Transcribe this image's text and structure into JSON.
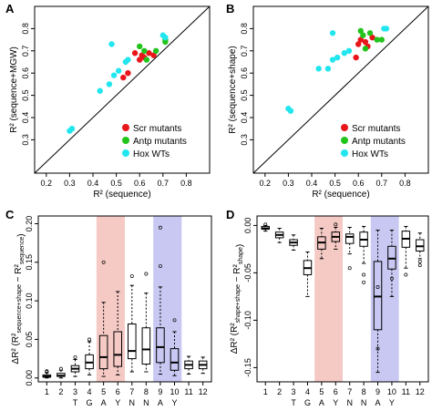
{
  "panels": {
    "A": "A",
    "B": "B",
    "C": "C",
    "D": "D"
  },
  "colors": {
    "scr": "#e8161b",
    "antp": "#22c41c",
    "hox": "#22e6ee",
    "box_red_band": "#f5c9c4",
    "box_blue_band": "#c8c8f3"
  },
  "chart_data": [
    {
      "id": "A",
      "type": "scatter",
      "xlabel": "R² (sequence)",
      "ylabel": "R² (sequence+MGW)",
      "xlim": [
        0.15,
        0.9
      ],
      "ylim": [
        0.15,
        0.9
      ],
      "xticks": [
        "0.2",
        "0.3",
        "0.4",
        "0.5",
        "0.6",
        "0.7",
        "0.8"
      ],
      "yticks": [
        "0.3",
        "0.4",
        "0.5",
        "0.6",
        "0.7",
        "0.8"
      ],
      "diagonal": true,
      "legend_position": "bottom-right",
      "series": [
        {
          "name": "Scr mutants",
          "color_key": "scr",
          "points": [
            [
              0.58,
              0.69
            ],
            [
              0.61,
              0.68
            ],
            [
              0.64,
              0.69
            ],
            [
              0.66,
              0.68
            ],
            [
              0.55,
              0.6
            ],
            [
              0.53,
              0.58
            ],
            [
              0.6,
              0.66
            ],
            [
              0.62,
              0.67
            ]
          ]
        },
        {
          "name": "Antp mutants",
          "color_key": "antp",
          "points": [
            [
              0.6,
              0.72
            ],
            [
              0.62,
              0.7
            ],
            [
              0.63,
              0.66
            ],
            [
              0.67,
              0.7
            ],
            [
              0.71,
              0.74
            ],
            [
              0.71,
              0.75
            ]
          ]
        },
        {
          "name": "Hox WTs",
          "color_key": "hox",
          "points": [
            [
              0.3,
              0.34
            ],
            [
              0.31,
              0.35
            ],
            [
              0.43,
              0.52
            ],
            [
              0.47,
              0.55
            ],
            [
              0.49,
              0.59
            ],
            [
              0.51,
              0.61
            ],
            [
              0.54,
              0.65
            ],
            [
              0.55,
              0.66
            ],
            [
              0.48,
              0.73
            ],
            [
              0.7,
              0.77
            ],
            [
              0.71,
              0.76
            ]
          ]
        }
      ]
    },
    {
      "id": "B",
      "type": "scatter",
      "xlabel": "R² (sequence)",
      "ylabel": "R² (sequence+shape)",
      "xlim": [
        0.15,
        0.9
      ],
      "ylim": [
        0.15,
        0.9
      ],
      "xticks": [
        "0.2",
        "0.3",
        "0.4",
        "0.5",
        "0.6",
        "0.7",
        "0.8"
      ],
      "yticks": [
        "0.3",
        "0.4",
        "0.5",
        "0.6",
        "0.7",
        "0.8"
      ],
      "diagonal": true,
      "legend_position": "bottom-right",
      "series": [
        {
          "name": "Scr mutants",
          "color_key": "scr",
          "points": [
            [
              0.59,
              0.67
            ],
            [
              0.61,
              0.75
            ],
            [
              0.63,
              0.74
            ],
            [
              0.66,
              0.76
            ],
            [
              0.64,
              0.72
            ],
            [
              0.6,
              0.73
            ]
          ]
        },
        {
          "name": "Antp mutants",
          "color_key": "antp",
          "points": [
            [
              0.61,
              0.79
            ],
            [
              0.63,
              0.71
            ],
            [
              0.65,
              0.78
            ],
            [
              0.68,
              0.75
            ],
            [
              0.7,
              0.75
            ],
            [
              0.62,
              0.77
            ]
          ]
        },
        {
          "name": "Hox WTs",
          "color_key": "hox",
          "points": [
            [
              0.3,
              0.44
            ],
            [
              0.31,
              0.43
            ],
            [
              0.43,
              0.62
            ],
            [
              0.47,
              0.62
            ],
            [
              0.49,
              0.66
            ],
            [
              0.51,
              0.67
            ],
            [
              0.54,
              0.69
            ],
            [
              0.56,
              0.7
            ],
            [
              0.49,
              0.78
            ],
            [
              0.71,
              0.8
            ],
            [
              0.72,
              0.8
            ]
          ]
        }
      ]
    },
    {
      "id": "C",
      "type": "box",
      "ylabel_main": "ΔR² (R²",
      "ylabel_sub1": "sequence+shape",
      "ylabel_mid": " − R²",
      "ylabel_sub2": "sequence",
      "ylabel_end": ")",
      "ylim": [
        -0.005,
        0.21
      ],
      "yticks": [
        "0.00",
        "0.05",
        "0.10",
        "0.15",
        "0.20"
      ],
      "categories": [
        "1",
        "2",
        "3",
        "4",
        "5",
        "6",
        "7",
        "8",
        "9",
        "10",
        "11",
        "12"
      ],
      "bases": [
        "T",
        "G",
        "A",
        "Y",
        "N",
        "N",
        "A",
        "Y"
      ],
      "red_band": [
        5,
        6
      ],
      "blue_band": [
        9,
        10
      ],
      "boxes": [
        {
          "min": 0.0,
          "q1": 0.001,
          "med": 0.002,
          "q3": 0.004,
          "max": 0.007,
          "out": [
            0.008,
            0.009
          ]
        },
        {
          "min": 0.0,
          "q1": 0.002,
          "med": 0.003,
          "q3": 0.006,
          "max": 0.01,
          "out": [
            0.012
          ]
        },
        {
          "min": 0.002,
          "q1": 0.008,
          "med": 0.012,
          "q3": 0.016,
          "max": 0.024,
          "out": [
            0.027
          ]
        },
        {
          "min": 0.004,
          "q1": 0.012,
          "med": 0.02,
          "q3": 0.03,
          "max": 0.047,
          "out": [
            0.05
          ]
        },
        {
          "min": 0.002,
          "q1": 0.012,
          "med": 0.027,
          "q3": 0.055,
          "max": 0.098,
          "out": [
            0.15
          ]
        },
        {
          "min": 0.004,
          "q1": 0.015,
          "med": 0.03,
          "q3": 0.06,
          "max": 0.112,
          "out": []
        },
        {
          "min": 0.008,
          "q1": 0.025,
          "med": 0.035,
          "q3": 0.07,
          "max": 0.12,
          "out": [
            0.132
          ]
        },
        {
          "min": 0.008,
          "q1": 0.018,
          "med": 0.037,
          "q3": 0.065,
          "max": 0.11,
          "out": [
            0.135
          ]
        },
        {
          "min": 0.005,
          "q1": 0.02,
          "med": 0.04,
          "q3": 0.065,
          "max": 0.118,
          "out": [
            0.145,
            0.195
          ]
        },
        {
          "min": 0.003,
          "q1": 0.01,
          "med": 0.02,
          "q3": 0.038,
          "max": 0.06,
          "out": [
            0.075
          ]
        },
        {
          "min": 0.005,
          "q1": 0.012,
          "med": 0.017,
          "q3": 0.022,
          "max": 0.028,
          "out": []
        },
        {
          "min": 0.006,
          "q1": 0.012,
          "med": 0.017,
          "q3": 0.022,
          "max": 0.027,
          "out": []
        }
      ]
    },
    {
      "id": "D",
      "type": "box",
      "ylabel_main": "ΔR² (R²",
      "ylabel_sub1": "shape+shape",
      "ylabel_mid": " − R²",
      "ylabel_sub2": "shape",
      "ylabel_end": ")",
      "ylim": [
        -0.165,
        0.01
      ],
      "yticks": [
        "0.00",
        "-0.05",
        "-0.10",
        "-0.15"
      ],
      "categories": [
        "1",
        "2",
        "3",
        "4",
        "5",
        "6",
        "7",
        "8",
        "9",
        "10",
        "11",
        "12"
      ],
      "bases": [
        "T",
        "G",
        "A",
        "Y",
        "N",
        "N",
        "A",
        "Y"
      ],
      "red_band": [
        5,
        6
      ],
      "blue_band": [
        9,
        10
      ],
      "boxes": [
        {
          "min": -0.006,
          "q1": -0.004,
          "med": -0.003,
          "q3": -0.001,
          "max": 0.0,
          "out": [
            0.001
          ]
        },
        {
          "min": -0.018,
          "q1": -0.013,
          "med": -0.01,
          "q3": -0.007,
          "max": -0.003,
          "out": []
        },
        {
          "min": -0.026,
          "q1": -0.021,
          "med": -0.018,
          "q3": -0.015,
          "max": -0.01,
          "out": []
        },
        {
          "min": -0.075,
          "q1": -0.052,
          "med": -0.045,
          "q3": -0.037,
          "max": -0.028,
          "out": []
        },
        {
          "min": -0.035,
          "q1": -0.025,
          "med": -0.018,
          "q3": -0.012,
          "max": -0.003,
          "out": []
        },
        {
          "min": -0.025,
          "q1": -0.017,
          "med": -0.012,
          "q3": -0.007,
          "max": -0.002,
          "out": [
            0.001
          ]
        },
        {
          "min": -0.03,
          "q1": -0.019,
          "med": -0.012,
          "q3": -0.009,
          "max": -0.002,
          "out": [
            -0.045
          ]
        },
        {
          "min": -0.04,
          "q1": -0.022,
          "med": -0.015,
          "q3": -0.007,
          "max": -0.001,
          "out": [
            -0.052,
            -0.06
          ]
        },
        {
          "min": -0.155,
          "q1": -0.11,
          "med": -0.075,
          "q3": -0.038,
          "max": -0.005,
          "out": [
            -0.065,
            -0.13
          ]
        },
        {
          "min": -0.075,
          "q1": -0.046,
          "med": -0.035,
          "q3": -0.022,
          "max": -0.005,
          "out": [
            -0.056
          ]
        },
        {
          "min": -0.045,
          "q1": -0.023,
          "med": -0.014,
          "q3": -0.006,
          "max": -0.001,
          "out": [
            -0.052
          ]
        },
        {
          "min": -0.035,
          "q1": -0.027,
          "med": -0.022,
          "q3": -0.015,
          "max": -0.008,
          "out": [
            -0.038,
            -0.042
          ]
        }
      ]
    }
  ]
}
